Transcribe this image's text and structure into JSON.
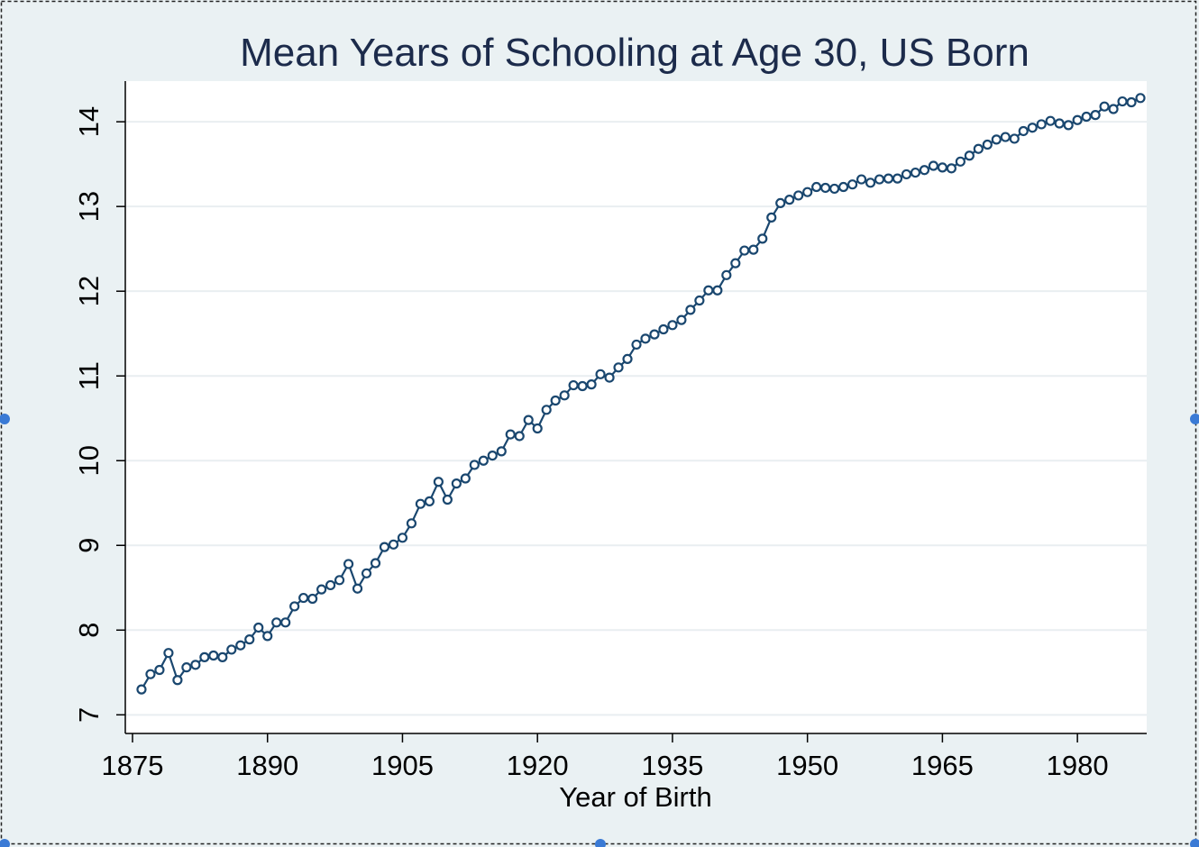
{
  "colors": {
    "page_background": "#eaf1f3",
    "plot_background": "#ffffff",
    "gridline": "#e9eef1",
    "series": "#1a476f",
    "title": "#1c2b4b",
    "selection_border": "#222222",
    "selection_handle": "#3a7ad5"
  },
  "chart_data": {
    "type": "line",
    "title": "Mean Years of Schooling at Age 30, US Born",
    "xlabel": "Year of Birth",
    "ylabel": "",
    "xlim": [
      1874.2,
      1987.7
    ],
    "ylim": [
      6.78,
      14.48
    ],
    "xticks": [
      1875,
      1890,
      1905,
      1920,
      1935,
      1950,
      1965,
      1980
    ],
    "yticks": [
      7,
      8,
      9,
      10,
      11,
      12,
      13,
      14
    ],
    "grid": true,
    "marker": "hollow-circle",
    "series": [
      {
        "name": "",
        "x": [
          1876,
          1877,
          1878,
          1879,
          1880,
          1881,
          1882,
          1883,
          1884,
          1885,
          1886,
          1887,
          1888,
          1889,
          1890,
          1891,
          1892,
          1893,
          1894,
          1895,
          1896,
          1897,
          1898,
          1899,
          1900,
          1901,
          1902,
          1903,
          1904,
          1905,
          1906,
          1907,
          1908,
          1909,
          1910,
          1911,
          1912,
          1913,
          1914,
          1915,
          1916,
          1917,
          1918,
          1919,
          1920,
          1921,
          1922,
          1923,
          1924,
          1925,
          1926,
          1927,
          1928,
          1929,
          1930,
          1931,
          1932,
          1933,
          1934,
          1935,
          1936,
          1937,
          1938,
          1939,
          1940,
          1941,
          1942,
          1943,
          1944,
          1945,
          1946,
          1947,
          1948,
          1949,
          1950,
          1951,
          1952,
          1953,
          1954,
          1955,
          1956,
          1957,
          1958,
          1959,
          1960,
          1961,
          1962,
          1963,
          1964,
          1965,
          1966,
          1967,
          1968,
          1969,
          1970,
          1971,
          1972,
          1973,
          1974,
          1975,
          1976,
          1977,
          1978,
          1979,
          1980,
          1981,
          1982,
          1983,
          1984,
          1985,
          1986,
          1987
        ],
        "y": [
          7.3,
          7.48,
          7.53,
          7.73,
          7.41,
          7.56,
          7.59,
          7.68,
          7.7,
          7.68,
          7.77,
          7.82,
          7.89,
          8.03,
          7.93,
          8.09,
          8.09,
          8.28,
          8.38,
          8.37,
          8.48,
          8.53,
          8.59,
          8.78,
          8.49,
          8.67,
          8.79,
          8.98,
          9.01,
          9.09,
          9.26,
          9.49,
          9.52,
          9.75,
          9.54,
          9.73,
          9.79,
          9.95,
          10.0,
          10.06,
          10.11,
          10.31,
          10.29,
          10.48,
          10.38,
          10.6,
          10.71,
          10.77,
          10.89,
          10.88,
          10.9,
          11.02,
          10.98,
          11.1,
          11.2,
          11.37,
          11.44,
          11.49,
          11.55,
          11.6,
          11.66,
          11.78,
          11.89,
          12.01,
          12.01,
          12.19,
          12.33,
          12.48,
          12.49,
          12.62,
          12.87,
          13.04,
          13.08,
          13.13,
          13.17,
          13.23,
          13.22,
          13.21,
          13.23,
          13.26,
          13.32,
          13.28,
          13.32,
          13.33,
          13.33,
          13.38,
          13.4,
          13.43,
          13.48,
          13.46,
          13.45,
          13.53,
          13.6,
          13.68,
          13.73,
          13.79,
          13.82,
          13.8,
          13.89,
          13.93,
          13.97,
          14.01,
          13.98,
          13.96,
          14.02,
          14.06,
          14.08,
          14.18,
          14.15,
          14.24,
          14.23,
          14.28
        ]
      }
    ]
  }
}
